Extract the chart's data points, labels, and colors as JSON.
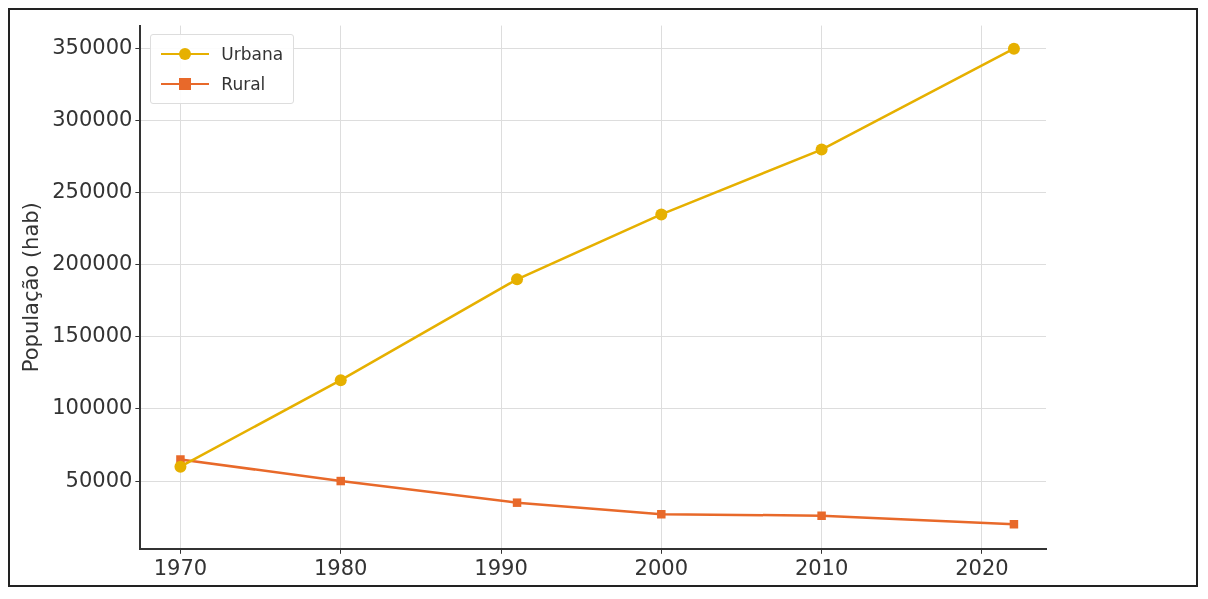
{
  "chart_data": {
    "type": "line",
    "ylabel": "População (hab)",
    "x": [
      1970,
      1980,
      1991,
      2000,
      2010,
      2022
    ],
    "xlim": [
      1967.5,
      2024
    ],
    "xticks": [
      1970,
      1980,
      1990,
      2000,
      2010,
      2020
    ],
    "ylim": [
      3000,
      366000
    ],
    "yticks": [
      50000,
      100000,
      150000,
      200000,
      250000,
      300000,
      350000
    ],
    "series": [
      {
        "name": "Urbana",
        "color": "#e6b000",
        "marker": "circle",
        "values": [
          60000,
          120000,
          190000,
          235000,
          280000,
          350000
        ]
      },
      {
        "name": "Rural",
        "color": "#e8692a",
        "marker": "square",
        "values": [
          65000,
          50000,
          35000,
          27000,
          26000,
          20000
        ]
      }
    ],
    "grid": true,
    "legend": "top left",
    "line_style": "solid"
  }
}
